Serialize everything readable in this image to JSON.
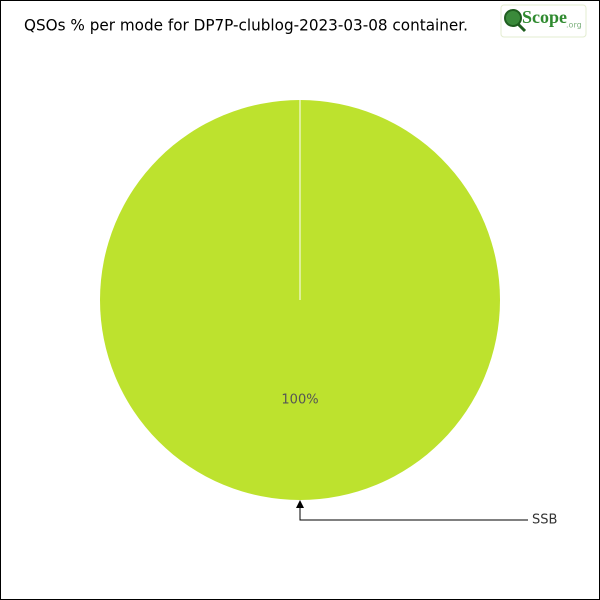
{
  "chart_data": {
    "type": "pie",
    "title": "QSOs % per mode for DP7P-clublog-2023-03-08 container.",
    "categories": [
      "SSB"
    ],
    "values": [
      100
    ],
    "value_labels": [
      "100%"
    ],
    "colors": [
      "#bde22e"
    ]
  },
  "logo": {
    "text": "Scope",
    "suffix": ".org"
  }
}
